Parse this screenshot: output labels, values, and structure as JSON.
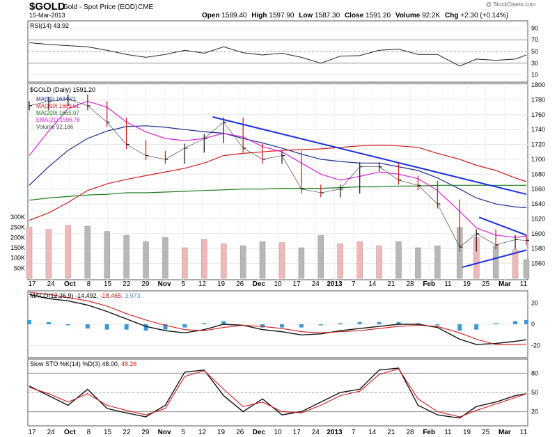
{
  "header": {
    "symbol": "$GOLD",
    "name": "Gold - Spot Price (EOD)",
    "exchange": "CME",
    "date": "15-Mar-2013",
    "watermark": "@ StockCharts.com",
    "quote": {
      "open_label": "Open",
      "open": "1589.40",
      "high_label": "High",
      "high": "1597.90",
      "low_label": "Low",
      "low": "1587.30",
      "close_label": "Close",
      "close": "1591.20",
      "volume_label": "Volume",
      "volume": "92.2K",
      "chg_label": "Chg",
      "chg": "+2.30 (+0.14%)"
    }
  },
  "legends": {
    "rsi": "RSI(14) 43.92",
    "price": "$GOLD (Daily) 1591.20",
    "ma50": "MA(50) 1634.71",
    "ma100": "MA(100) 1669.51",
    "ma200": "MA(200) 1665.07",
    "ema21": "EMA(21) 1596.78",
    "volume": "Volume 92,166",
    "macd_main": "MACD(12,26,9) -14.492,",
    "macd_signal": "-18.465,",
    "macd_hist": "3.973",
    "sto_main": "Slow STO %K(14) %D(3) 48.00,",
    "sto_d": "48.26"
  },
  "colors": {
    "ma50": "#1a2a8c",
    "ma100": "#d21a1a",
    "ma200": "#1a7a1a",
    "ema21": "#e020e0",
    "trendline": "#1a2ee0",
    "histogram": "#3a9ad9",
    "up_volume": "#f2b8b8",
    "down_volume": "#b8b8b8"
  },
  "chart_data": [
    {
      "type": "line",
      "title": "RSI(14) 43.92",
      "ylim": [
        0,
        100
      ],
      "yticks": [
        "90",
        "70",
        "50",
        "30",
        "10"
      ],
      "reference_lines": [
        70,
        50,
        30
      ],
      "x": [
        "2012-09-17",
        "2012-09-24",
        "2012-10-01",
        "2012-10-08",
        "2012-10-15",
        "2012-10-22",
        "2012-10-29",
        "2012-11-05",
        "2012-11-12",
        "2012-11-19",
        "2012-11-26",
        "2012-12-03",
        "2012-12-10",
        "2012-12-17",
        "2012-12-24",
        "2012-12-31",
        "2013-01-07",
        "2013-01-14",
        "2013-01-21",
        "2013-01-28",
        "2013-02-04",
        "2013-02-11",
        "2013-02-19",
        "2013-02-25",
        "2013-03-04",
        "2013-03-11",
        "2013-03-15"
      ],
      "series": [
        {
          "name": "RSI(14)",
          "values": [
            65,
            62,
            60,
            58,
            52,
            45,
            40,
            45,
            52,
            47,
            58,
            48,
            44,
            47,
            40,
            30,
            42,
            43,
            52,
            54,
            45,
            45,
            25,
            37,
            35,
            37,
            44
          ]
        }
      ]
    },
    {
      "type": "line",
      "title": "$GOLD (Daily) 1591.20",
      "ylim": [
        1540,
        1800
      ],
      "yticks": [
        "1800",
        "1780",
        "1760",
        "1740",
        "1720",
        "1700",
        "1680",
        "1660",
        "1640",
        "1620",
        "1600",
        "1580",
        "1560"
      ],
      "volume_ticks": [
        "300K",
        "250K",
        "200K",
        "150K",
        "100K",
        "50K"
      ],
      "x_tick_labels": [
        "17",
        "24",
        "Oct",
        "8",
        "15",
        "22",
        "29",
        "Nov",
        "5",
        "12",
        "19",
        "26",
        "Dec",
        "10",
        "17",
        "24",
        "2013",
        "7",
        "14",
        "21",
        "28",
        "Feb",
        "11",
        "19",
        "25",
        "Mar",
        "11"
      ],
      "x": [
        "2012-09-17",
        "2012-09-24",
        "2012-10-01",
        "2012-10-08",
        "2012-10-15",
        "2012-10-22",
        "2012-10-29",
        "2012-11-05",
        "2012-11-12",
        "2012-11-19",
        "2012-11-26",
        "2012-12-03",
        "2012-12-10",
        "2012-12-17",
        "2012-12-24",
        "2012-12-31",
        "2013-01-07",
        "2013-01-14",
        "2013-01-21",
        "2013-01-28",
        "2013-02-04",
        "2013-02-11",
        "2013-02-19",
        "2013-02-25",
        "2013-03-04",
        "2013-03-11",
        "2013-03-15"
      ],
      "series": [
        {
          "name": "$GOLD",
          "values": [
            1772,
            1778,
            1781,
            1772,
            1750,
            1720,
            1705,
            1700,
            1715,
            1728,
            1750,
            1715,
            1700,
            1705,
            1660,
            1655,
            1660,
            1690,
            1690,
            1672,
            1665,
            1640,
            1582,
            1600,
            1585,
            1592,
            1591
          ]
        },
        {
          "name": "MA(50)",
          "values": [
            1665,
            1690,
            1712,
            1728,
            1738,
            1744,
            1745,
            1743,
            1740,
            1737,
            1735,
            1728,
            1722,
            1715,
            1707,
            1700,
            1697,
            1695,
            1695,
            1690,
            1685,
            1675,
            1660,
            1648,
            1640,
            1636,
            1635
          ]
        },
        {
          "name": "MA(100)",
          "values": [
            1618,
            1628,
            1642,
            1658,
            1667,
            1673,
            1678,
            1683,
            1688,
            1695,
            1705,
            1708,
            1710,
            1712,
            1713,
            1714,
            1716,
            1718,
            1719,
            1718,
            1716,
            1708,
            1700,
            1692,
            1685,
            1675,
            1670
          ]
        },
        {
          "name": "MA(200)",
          "values": [
            1645,
            1648,
            1650,
            1652,
            1653,
            1655,
            1655,
            1656,
            1657,
            1658,
            1659,
            1660,
            1660,
            1661,
            1661,
            1661,
            1662,
            1663,
            1663,
            1664,
            1664,
            1665,
            1665,
            1665,
            1665,
            1665,
            1665
          ]
        },
        {
          "name": "EMA(21)",
          "values": [
            1705,
            1738,
            1768,
            1778,
            1770,
            1750,
            1737,
            1728,
            1725,
            1728,
            1735,
            1730,
            1717,
            1710,
            1695,
            1680,
            1672,
            1677,
            1683,
            1680,
            1674,
            1658,
            1630,
            1608,
            1598,
            1595,
            1597
          ]
        }
      ],
      "volume": [
        250000,
        240000,
        260000,
        255000,
        230000,
        210000,
        180000,
        200000,
        150000,
        190000,
        170000,
        160000,
        180000,
        175000,
        150000,
        210000,
        170000,
        180000,
        160000,
        180000,
        150000,
        160000,
        250000,
        200000,
        160000,
        140000,
        92166
      ],
      "trendlines": [
        {
          "from": [
            "2012-11-22",
            1757
          ],
          "to": [
            "2013-03-15",
            1653
          ]
        },
        {
          "from": [
            "2013-02-26",
            1622
          ],
          "to": [
            "2013-03-15",
            1598
          ]
        },
        {
          "from": [
            "2013-02-20",
            1555
          ],
          "to": [
            "2013-03-15",
            1578
          ]
        }
      ]
    },
    {
      "type": "line",
      "title": "MACD(12,26,9) -14.492, -18.465, 3.973",
      "ylim": [
        -30,
        30
      ],
      "yticks": [
        "20",
        "0",
        "-20"
      ],
      "x": [
        "2012-09-17",
        "2012-09-24",
        "2012-10-01",
        "2012-10-08",
        "2012-10-15",
        "2012-10-22",
        "2012-10-29",
        "2012-11-05",
        "2012-11-12",
        "2012-11-19",
        "2012-11-26",
        "2012-12-03",
        "2012-12-10",
        "2012-12-17",
        "2012-12-24",
        "2012-12-31",
        "2013-01-07",
        "2013-01-14",
        "2013-01-21",
        "2013-01-28",
        "2013-02-04",
        "2013-02-11",
        "2013-02-19",
        "2013-02-25",
        "2013-03-04",
        "2013-03-11",
        "2013-03-15"
      ],
      "series": [
        {
          "name": "MACD",
          "values": [
            28,
            24,
            22,
            18,
            12,
            5,
            -2,
            -6,
            -8,
            -5,
            0,
            -1,
            -5,
            -7,
            -10,
            -9,
            -6,
            -4,
            -2,
            0,
            0,
            -3,
            -14,
            -19,
            -18,
            -16,
            -14.5
          ]
        },
        {
          "name": "Signal",
          "values": [
            30,
            28,
            25,
            22,
            17,
            10,
            4,
            -1,
            -5,
            -6,
            -3,
            -1,
            -2,
            -4,
            -7,
            -8,
            -7,
            -6,
            -4,
            -2,
            -1,
            -2,
            -8,
            -14,
            -19,
            -19,
            -18.5
          ]
        },
        {
          "name": "Histogram",
          "values": [
            4,
            2,
            -1,
            -4,
            -5,
            -5,
            -6,
            -5,
            -3,
            1,
            3,
            0,
            -3,
            -3,
            -3,
            -1,
            1,
            2,
            2,
            2,
            1,
            -1,
            -6,
            -5,
            1,
            3,
            4
          ]
        }
      ]
    },
    {
      "type": "line",
      "title": "Slow STO %K(14) %D(3) 48.00, 48.26",
      "ylim": [
        0,
        100
      ],
      "yticks": [
        "80",
        "50",
        "20"
      ],
      "reference_lines": [
        80,
        50,
        20
      ],
      "x": [
        "2012-09-17",
        "2012-09-24",
        "2012-10-01",
        "2012-10-08",
        "2012-10-15",
        "2012-10-22",
        "2012-10-29",
        "2012-11-05",
        "2012-11-12",
        "2012-11-19",
        "2012-11-26",
        "2012-12-03",
        "2012-12-10",
        "2012-12-17",
        "2012-12-24",
        "2012-12-31",
        "2013-01-07",
        "2013-01-14",
        "2013-01-21",
        "2013-01-28",
        "2013-02-04",
        "2013-02-11",
        "2013-02-19",
        "2013-02-25",
        "2013-03-04",
        "2013-03-11",
        "2013-03-15"
      ],
      "series": [
        {
          "name": "%K",
          "values": [
            60,
            45,
            30,
            55,
            25,
            18,
            12,
            30,
            82,
            85,
            45,
            20,
            40,
            15,
            20,
            35,
            50,
            55,
            85,
            88,
            30,
            15,
            10,
            28,
            35,
            45,
            48
          ]
        },
        {
          "name": "%D",
          "values": [
            58,
            48,
            35,
            48,
            30,
            22,
            15,
            25,
            75,
            84,
            55,
            28,
            35,
            20,
            18,
            30,
            45,
            52,
            78,
            87,
            40,
            20,
            12,
            22,
            32,
            42,
            48
          ]
        }
      ]
    }
  ]
}
